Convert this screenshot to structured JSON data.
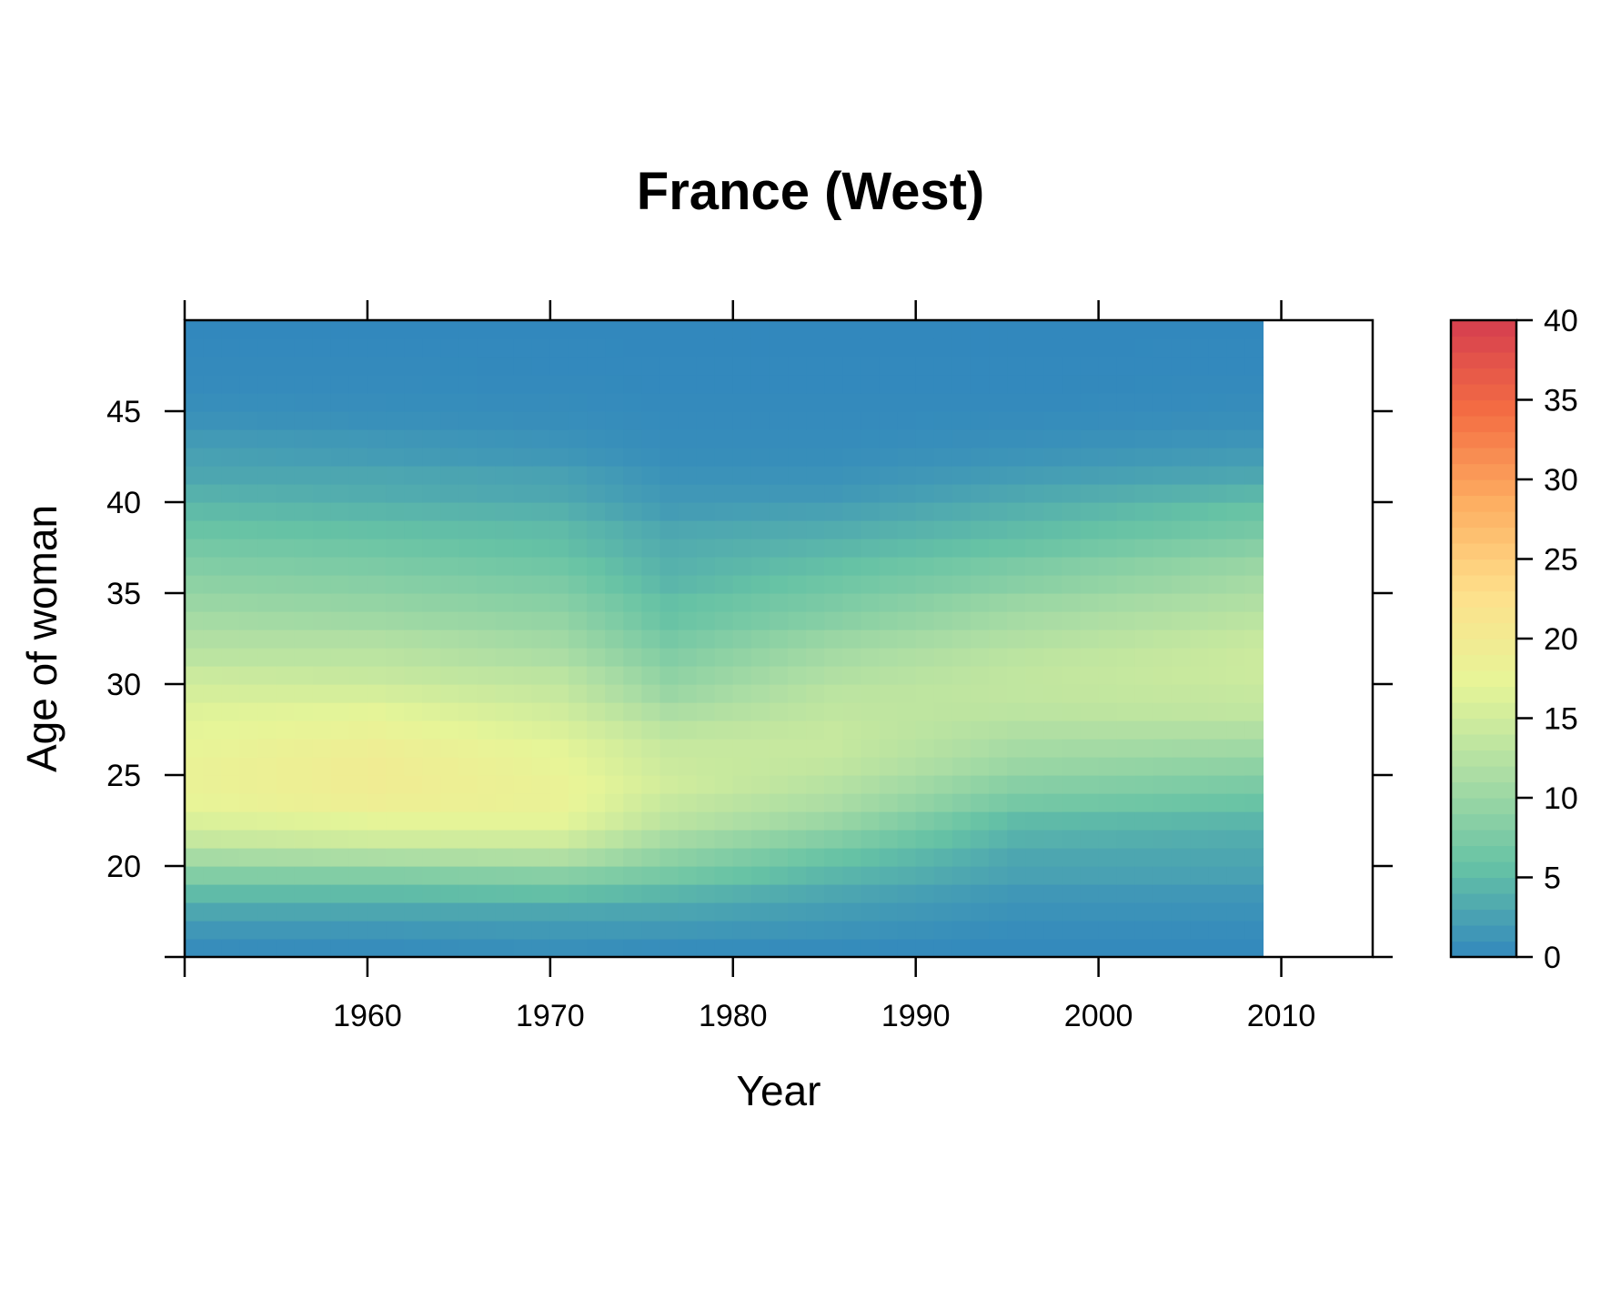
{
  "chart_data": {
    "type": "heatmap",
    "title": "France (West)",
    "xlabel": "Year",
    "ylabel": "Age of woman",
    "xlim": [
      1950,
      2015
    ],
    "ylim": [
      15,
      50
    ],
    "x_ticks": [
      1960,
      1970,
      1980,
      1990,
      2000,
      2010
    ],
    "y_ticks": [
      20,
      25,
      30,
      35,
      40,
      45
    ],
    "x_tick_labels": [
      "1960",
      "1970",
      "1980",
      "1990",
      "2000",
      "2010"
    ],
    "y_tick_labels": [
      "20",
      "25",
      "30",
      "35",
      "40",
      "45"
    ],
    "data_x_range": [
      1950,
      2008
    ],
    "colorbar": {
      "range": [
        0,
        40
      ],
      "ticks": [
        0,
        5,
        10,
        15,
        20,
        25,
        30,
        35,
        40
      ],
      "tick_labels": [
        "0",
        "5",
        "10",
        "15",
        "20",
        "25",
        "30",
        "35",
        "40"
      ],
      "palette": [
        "#3288bd",
        "#66c2a5",
        "#abdda4",
        "#e6f598",
        "#fee08b",
        "#fdae61",
        "#f46d43",
        "#d53e4f"
      ]
    },
    "values_by_age_at_years": {
      "years": [
        1950,
        1960,
        1970,
        1976,
        1985,
        1995,
        2008
      ],
      "rows": [
        {
          "age": 15,
          "values": [
            0.5,
            0.5,
            0.8,
            0.5,
            0.4,
            0.2,
            0.2
          ]
        },
        {
          "age": 16,
          "values": [
            1.5,
            1.5,
            1.7,
            1.6,
            1.2,
            0.5,
            0.5
          ]
        },
        {
          "age": 17,
          "values": [
            3,
            3,
            3,
            2.8,
            2,
            1,
            1
          ]
        },
        {
          "age": 18,
          "values": [
            5,
            5,
            5.5,
            4.5,
            3,
            1.5,
            1.5
          ]
        },
        {
          "age": 19,
          "values": [
            8,
            8,
            8.5,
            7,
            4.5,
            2.5,
            2.5
          ]
        },
        {
          "age": 20,
          "values": [
            11,
            11.5,
            12,
            9,
            6,
            3,
            3
          ]
        },
        {
          "age": 21,
          "values": [
            14,
            15,
            15,
            11,
            8,
            4,
            3.5
          ]
        },
        {
          "age": 22,
          "values": [
            16,
            17,
            17,
            13,
            10,
            5,
            4.5
          ]
        },
        {
          "age": 23,
          "values": [
            17.5,
            19,
            18,
            14,
            11.5,
            7,
            6
          ]
        },
        {
          "age": 24,
          "values": [
            18,
            19.5,
            18,
            15,
            12.5,
            8.5,
            7.5
          ]
        },
        {
          "age": 25,
          "values": [
            18,
            19.5,
            17.5,
            14.5,
            13.5,
            10,
            9
          ]
        },
        {
          "age": 26,
          "values": [
            17.5,
            19,
            17,
            14,
            14,
            11,
            10.5
          ]
        },
        {
          "age": 27,
          "values": [
            17,
            18,
            16,
            13,
            14,
            12,
            12
          ]
        },
        {
          "age": 28,
          "values": [
            16.5,
            17,
            15,
            11.5,
            13.5,
            13,
            13.5
          ]
        },
        {
          "age": 29,
          "values": [
            15.5,
            15.5,
            14,
            10,
            13,
            13.5,
            14
          ]
        },
        {
          "age": 30,
          "values": [
            14.5,
            14,
            13,
            9,
            12,
            13.5,
            14.5
          ]
        },
        {
          "age": 31,
          "values": [
            13,
            13,
            11.5,
            8,
            11,
            13,
            14.5
          ]
        },
        {
          "age": 32,
          "values": [
            12,
            12,
            10.5,
            7,
            10,
            12,
            14
          ]
        },
        {
          "age": 33,
          "values": [
            11,
            10.5,
            9.5,
            6,
            8.5,
            11,
            13
          ]
        },
        {
          "age": 34,
          "values": [
            10,
            9.5,
            8.5,
            5.5,
            7.5,
            10,
            12
          ]
        },
        {
          "age": 35,
          "values": [
            9,
            8.5,
            7.5,
            4.5,
            6.5,
            8.5,
            11
          ]
        },
        {
          "age": 36,
          "values": [
            8,
            7.5,
            6.5,
            4,
            5.5,
            7.5,
            10
          ]
        },
        {
          "age": 37,
          "values": [
            7,
            6.5,
            5.5,
            3.5,
            4.5,
            6,
            8.5
          ]
        },
        {
          "age": 38,
          "values": [
            6,
            5.5,
            5,
            3,
            3.5,
            5,
            7
          ]
        },
        {
          "age": 39,
          "values": [
            5,
            4.5,
            4,
            2,
            2.5,
            4,
            6
          ]
        },
        {
          "age": 40,
          "values": [
            4,
            3.5,
            3,
            1.5,
            1.5,
            3,
            4.5
          ]
        },
        {
          "age": 41,
          "values": [
            3,
            3,
            2.5,
            1,
            1,
            2,
            3
          ]
        },
        {
          "age": 42,
          "values": [
            2.5,
            2,
            1.5,
            0.6,
            0.6,
            1.2,
            2
          ]
        },
        {
          "age": 43,
          "values": [
            1.8,
            1.5,
            1,
            0.4,
            0.4,
            0.7,
            1.2
          ]
        },
        {
          "age": 44,
          "values": [
            1,
            0.8,
            0.6,
            0.3,
            0.3,
            0.4,
            0.7
          ]
        },
        {
          "age": 45,
          "values": [
            0.6,
            0.5,
            0.4,
            0.2,
            0.2,
            0.2,
            0.4
          ]
        },
        {
          "age": 46,
          "values": [
            0.3,
            0.3,
            0.2,
            0.1,
            0.1,
            0.1,
            0.2
          ]
        },
        {
          "age": 47,
          "values": [
            0.2,
            0.2,
            0.1,
            0.1,
            0.1,
            0.1,
            0.1
          ]
        },
        {
          "age": 48,
          "values": [
            0.1,
            0.1,
            0.1,
            0,
            0,
            0,
            0.1
          ]
        },
        {
          "age": 49,
          "values": [
            0,
            0,
            0,
            0,
            0,
            0,
            0
          ]
        }
      ]
    }
  }
}
